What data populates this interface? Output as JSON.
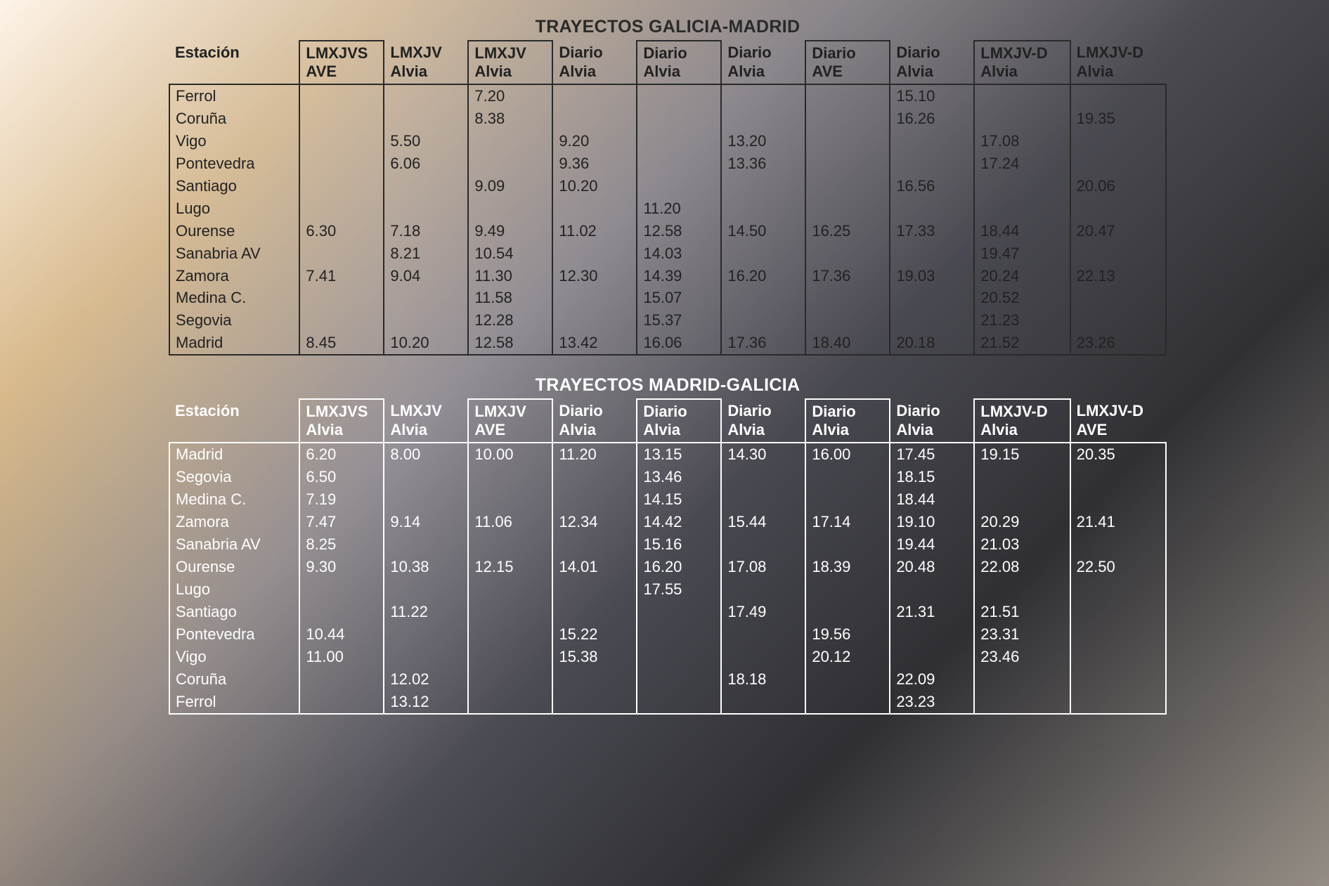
{
  "colors": {
    "upper_text": "#222222",
    "upper_border": "#2a2a2a",
    "lower_text": "#ffffff",
    "lower_border": "#ffffff"
  },
  "typography": {
    "font_family": "Arial",
    "title_fontsize": 25,
    "cell_fontsize": 22,
    "header_weight": 700
  },
  "upper": {
    "title": "TRAYECTOS GALICIA-MADRID",
    "station_header": "Estación",
    "columns": [
      {
        "days": "LMXJVS",
        "service": "AVE",
        "boxed": true
      },
      {
        "days": "LMXJV",
        "service": "Alvia",
        "boxed": false
      },
      {
        "days": "LMXJV",
        "service": "Alvia",
        "boxed": true
      },
      {
        "days": "Diario",
        "service": "Alvia",
        "boxed": false
      },
      {
        "days": "Diario",
        "service": "Alvia",
        "boxed": true
      },
      {
        "days": "Diario",
        "service": "Alvia",
        "boxed": false
      },
      {
        "days": "Diario",
        "service": "AVE",
        "boxed": true
      },
      {
        "days": "Diario",
        "service": "Alvia",
        "boxed": false
      },
      {
        "days": "LMXJV-D",
        "service": "Alvia",
        "boxed": true
      },
      {
        "days": "LMXJV-D",
        "service": "Alvia",
        "boxed": false
      }
    ],
    "stations": [
      "Ferrol",
      "Coruña",
      "Vigo",
      "Pontevedra",
      "Santiago",
      "Lugo",
      "Ourense",
      "Sanabria AV",
      "Zamora",
      "Medina C.",
      "Segovia",
      "Madrid"
    ],
    "rows": [
      [
        "",
        "",
        "7.20",
        "",
        "",
        "",
        "",
        "15.10",
        "",
        ""
      ],
      [
        "",
        "",
        "8.38",
        "",
        "",
        "",
        "",
        "16.26",
        "",
        "19.35"
      ],
      [
        "",
        "5.50",
        "",
        "9.20",
        "",
        "13.20",
        "",
        "",
        "17.08",
        ""
      ],
      [
        "",
        "6.06",
        "",
        "9.36",
        "",
        "13.36",
        "",
        "",
        "17.24",
        ""
      ],
      [
        "",
        "",
        "9.09",
        "10.20",
        "",
        "",
        "",
        "16.56",
        "",
        "20.06"
      ],
      [
        "",
        "",
        "",
        "",
        "11.20",
        "",
        "",
        "",
        "",
        ""
      ],
      [
        "6.30",
        "7.18",
        "9.49",
        "11.02",
        "12.58",
        "14.50",
        "16.25",
        "17.33",
        "18.44",
        "20.47"
      ],
      [
        "",
        "8.21",
        "10.54",
        "",
        "14.03",
        "",
        "",
        "",
        "19.47",
        ""
      ],
      [
        "7.41",
        "9.04",
        "11.30",
        "12.30",
        "14.39",
        "16.20",
        "17.36",
        "19.03",
        "20.24",
        "22.13"
      ],
      [
        "",
        "",
        "11.58",
        "",
        "15.07",
        "",
        "",
        "",
        "20.52",
        ""
      ],
      [
        "",
        "",
        "12.28",
        "",
        "15.37",
        "",
        "",
        "",
        "21.23",
        ""
      ],
      [
        "8.45",
        "10.20",
        "12.58",
        "13.42",
        "16.06",
        "17.36",
        "18.40",
        "20.18",
        "21.52",
        "23.26"
      ]
    ]
  },
  "lower": {
    "title": "TRAYECTOS MADRID-GALICIA",
    "station_header": "Estación",
    "columns": [
      {
        "days": "LMXJVS",
        "service": "Alvia",
        "boxed": true
      },
      {
        "days": "LMXJV",
        "service": "Alvia",
        "boxed": false
      },
      {
        "days": "LMXJV",
        "service": "AVE",
        "boxed": true
      },
      {
        "days": "Diario",
        "service": "Alvia",
        "boxed": false
      },
      {
        "days": "Diario",
        "service": "Alvia",
        "boxed": true
      },
      {
        "days": "Diario",
        "service": "Alvia",
        "boxed": false
      },
      {
        "days": "Diario",
        "service": "Alvia",
        "boxed": true
      },
      {
        "days": "Diario",
        "service": "Alvia",
        "boxed": false
      },
      {
        "days": "LMXJV-D",
        "service": "Alvia",
        "boxed": true
      },
      {
        "days": "LMXJV-D",
        "service": "AVE",
        "boxed": false
      }
    ],
    "stations": [
      "Madrid",
      "Segovia",
      "Medina C.",
      "Zamora",
      "Sanabria AV",
      "Ourense",
      "Lugo",
      "Santiago",
      "Pontevedra",
      "Vigo",
      "Coruña",
      "Ferrol"
    ],
    "rows": [
      [
        "6.20",
        "8.00",
        "10.00",
        "11.20",
        "13.15",
        "14.30",
        "16.00",
        "17.45",
        "19.15",
        "20.35"
      ],
      [
        "6.50",
        "",
        "",
        "",
        "13.46",
        "",
        "",
        "18.15",
        "",
        ""
      ],
      [
        "7.19",
        "",
        "",
        "",
        "14.15",
        "",
        "",
        "18.44",
        "",
        ""
      ],
      [
        "7.47",
        "9.14",
        "11.06",
        "12.34",
        "14.42",
        "15.44",
        "17.14",
        "19.10",
        "20.29",
        "21.41"
      ],
      [
        "8.25",
        "",
        "",
        "",
        "15.16",
        "",
        "",
        "19.44",
        "21.03",
        ""
      ],
      [
        "9.30",
        "10.38",
        "12.15",
        "14.01",
        "16.20",
        "17.08",
        "18.39",
        "20.48",
        "22.08",
        "22.50"
      ],
      [
        "",
        "",
        "",
        "",
        "17.55",
        "",
        "",
        "",
        "",
        ""
      ],
      [
        "",
        "11.22",
        "",
        "",
        "",
        "17.49",
        "",
        "21.31",
        "21.51",
        ""
      ],
      [
        "10.44",
        "",
        "",
        "15.22",
        "",
        "",
        "19.56",
        "",
        "23.31",
        ""
      ],
      [
        "11.00",
        "",
        "",
        "15.38",
        "",
        "",
        "20.12",
        "",
        "23.46",
        ""
      ],
      [
        "",
        "12.02",
        "",
        "",
        "",
        "18.18",
        "",
        "22.09",
        "",
        ""
      ],
      [
        "",
        "13.12",
        "",
        "",
        "",
        "",
        "",
        "23.23",
        "",
        ""
      ]
    ]
  }
}
